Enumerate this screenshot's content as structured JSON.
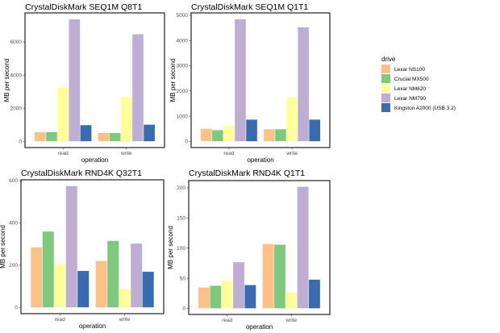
{
  "legend": {
    "title": "drive",
    "position": "right",
    "entries": [
      {
        "label": "Lexar NS100",
        "color": "#fdc086"
      },
      {
        "label": "Crucial MX500",
        "color": "#7fc97f"
      },
      {
        "label": "Lexar NM620",
        "color": "#ffff99"
      },
      {
        "label": "Lexar NM790",
        "color": "#beaed4"
      },
      {
        "label": "Kingston A2000 (USB 3.2)",
        "color": "#386cb0"
      }
    ]
  },
  "chart_data": [
    {
      "type": "bar",
      "title": "CrystalDiskMark SEQ1M Q8T1",
      "xlabel": "operation",
      "ylabel": "MB per second",
      "categories": [
        "read",
        "write"
      ],
      "ylim": [
        -370,
        7750
      ],
      "yticks": [
        0,
        2000,
        4000,
        6000
      ],
      "grid": false,
      "series": [
        {
          "name": "Lexar NS100",
          "values": [
            570,
            520
          ]
        },
        {
          "name": "Crucial MX500",
          "values": [
            570,
            520
          ]
        },
        {
          "name": "Lexar NM620",
          "values": [
            3260,
            2720
          ]
        },
        {
          "name": "Lexar NM790",
          "values": [
            7375,
            6470
          ]
        },
        {
          "name": "Kingston A2000 (USB 3.2)",
          "values": [
            990,
            1020
          ]
        }
      ]
    },
    {
      "type": "bar",
      "title": "CrystalDiskMark SEQ1M Q1T1",
      "xlabel": "operation",
      "ylabel": "MB per second",
      "categories": [
        "read",
        "write"
      ],
      "ylim": [
        -243,
        5093
      ],
      "yticks": [
        0,
        1000,
        2000,
        3000,
        4000,
        5000
      ],
      "grid": false,
      "series": [
        {
          "name": "Lexar NS100",
          "values": [
            510,
            490
          ]
        },
        {
          "name": "Crucial MX500",
          "values": [
            450,
            490
          ]
        },
        {
          "name": "Lexar NM620",
          "values": [
            640,
            1760
          ]
        },
        {
          "name": "Lexar NM790",
          "values": [
            4850,
            4530
          ]
        },
        {
          "name": "Kingston A2000 (USB 3.2)",
          "values": [
            870,
            870
          ]
        }
      ]
    },
    {
      "type": "bar",
      "title": "CrystalDiskMark RND4K Q32T1",
      "xlabel": "operation",
      "ylabel": "MB per second",
      "categories": [
        "read",
        "write"
      ],
      "ylim": [
        -29,
        604
      ],
      "yticks": [
        0,
        200,
        400,
        600
      ],
      "grid": false,
      "series": [
        {
          "name": "Lexar NS100",
          "values": [
            285,
            221
          ]
        },
        {
          "name": "Crucial MX500",
          "values": [
            360,
            316
          ]
        },
        {
          "name": "Lexar NM620",
          "values": [
            206,
            88
          ]
        },
        {
          "name": "Lexar NM790",
          "values": [
            575,
            303
          ]
        },
        {
          "name": "Kingston A2000 (USB 3.2)",
          "values": [
            174,
            170
          ]
        }
      ]
    },
    {
      "type": "bar",
      "title": "CrystalDiskMark RND4K Q1T1",
      "xlabel": "operation",
      "ylabel": "MB per second",
      "categories": [
        "read",
        "write"
      ],
      "ylim": [
        -10,
        212
      ],
      "yticks": [
        0,
        50,
        100,
        150,
        200
      ],
      "grid": false,
      "series": [
        {
          "name": "Lexar NS100",
          "values": [
            35,
            107
          ]
        },
        {
          "name": "Crucial MX500",
          "values": [
            38,
            106
          ]
        },
        {
          "name": "Lexar NM620",
          "values": [
            47,
            27
          ]
        },
        {
          "name": "Lexar NM790",
          "values": [
            77,
            202
          ]
        },
        {
          "name": "Kingston A2000 (USB 3.2)",
          "values": [
            39,
            48
          ]
        }
      ]
    }
  ]
}
